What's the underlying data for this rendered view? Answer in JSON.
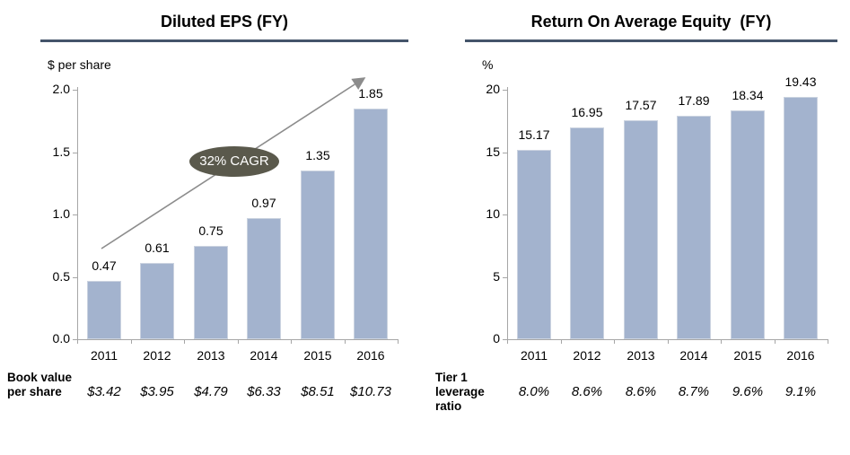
{
  "slide": {
    "background": "#FFFFFF"
  },
  "colors": {
    "bar_fill": "#A3B3CE",
    "bar_border": "#CBD3E0",
    "title_rule": "#44546A",
    "axis_line": "#A6A6A6",
    "trend_arrow": "#8C8C8C",
    "badge_fill": "#5A594C",
    "badge_text": "#FFFFFF",
    "text": "#000000"
  },
  "chart_data": [
    {
      "type": "bar",
      "title": "Diluted EPS (FY)",
      "unit_label": "$ per share",
      "categories": [
        "2011",
        "2012",
        "2013",
        "2014",
        "2015",
        "2016"
      ],
      "values": [
        0.47,
        0.61,
        0.75,
        0.97,
        1.35,
        1.85
      ],
      "value_labels": [
        "0.47",
        "0.61",
        "0.75",
        "0.97",
        "1.35",
        "1.85"
      ],
      "ylim": [
        0,
        2.0
      ],
      "yticks": [
        0,
        0.5,
        1.0,
        1.5,
        2.0
      ],
      "ytick_labels": [
        "0.0",
        "0.5",
        "1.0",
        "1.5",
        "2.0"
      ],
      "grid": false,
      "legend": "none",
      "annotation": {
        "label": "32% CAGR",
        "type": "trend-arrow-ellipse"
      },
      "footer": {
        "label": "Book value per share",
        "values": [
          "$3.42",
          "$3.95",
          "$4.79",
          "$6.33",
          "$8.51",
          "$10.73"
        ]
      }
    },
    {
      "type": "bar",
      "title": "Return On Average Equity  (FY)",
      "unit_label": "%",
      "categories": [
        "2011",
        "2012",
        "2013",
        "2014",
        "2015",
        "2016"
      ],
      "values": [
        15.17,
        16.95,
        17.57,
        17.89,
        18.34,
        19.43
      ],
      "value_labels": [
        "15.17",
        "16.95",
        "17.57",
        "17.89",
        "18.34",
        "19.43"
      ],
      "ylim": [
        0,
        20
      ],
      "yticks": [
        0,
        5,
        10,
        15,
        20
      ],
      "ytick_labels": [
        "0",
        "5",
        "10",
        "15",
        "20"
      ],
      "grid": false,
      "legend": "none",
      "footer": {
        "label": "Tier 1 leverage ratio",
        "values": [
          "8.0%",
          "8.6%",
          "8.6%",
          "8.7%",
          "9.6%",
          "9.1%"
        ]
      }
    }
  ]
}
